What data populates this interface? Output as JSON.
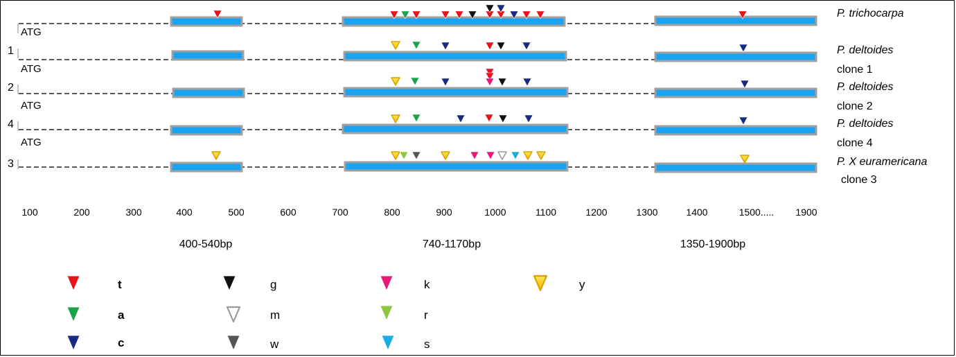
{
  "species": [
    {
      "name": "P. trichocarpa",
      "clone": ""
    },
    {
      "name": "P. deltoides",
      "clone": "clone 1"
    },
    {
      "name": "P. deltoides",
      "clone": "clone 2"
    },
    {
      "name": "P. deltoides",
      "clone": "clone 4"
    },
    {
      "name": "P. X euramericana",
      "clone": "clone 3"
    }
  ],
  "row_numbers": [
    "",
    "1",
    "2",
    "4",
    "3"
  ],
  "start_codon_label": "ATG",
  "axis_ticks": [
    "100",
    "200",
    "300",
    "400",
    "500",
    "600",
    "700",
    "800",
    "900",
    "1000",
    "1100",
    "1200",
    "1300",
    "1400",
    "1500.....",
    "1900"
  ],
  "segments": [
    "400-540bp",
    "740-1170bp",
    "1350-1900bp"
  ],
  "colors": {
    "exon_fill": "#1AA3F0",
    "exon_border": "#A0A0A0",
    "t": "#E8141C",
    "a": "#1BA34A",
    "c": "#1A2A82",
    "g": "#111111",
    "m": "#FFFFFF",
    "w": "#555555",
    "k": "#E8197A",
    "r": "#8DC63F",
    "s": "#1AACE0",
    "y": "#FFD700"
  },
  "legend": [
    {
      "symbol": "t",
      "color_key": "t",
      "bold": true
    },
    {
      "symbol": "a",
      "color_key": "a",
      "bold": true
    },
    {
      "symbol": "c",
      "color_key": "c",
      "bold": true
    },
    {
      "symbol": "g",
      "color_key": "g",
      "bold": false
    },
    {
      "symbol": "m",
      "color_key": "m",
      "bold": false
    },
    {
      "symbol": "w",
      "color_key": "w",
      "bold": false
    },
    {
      "symbol": "k",
      "color_key": "k",
      "bold": false
    },
    {
      "symbol": "r",
      "color_key": "r",
      "bold": false
    },
    {
      "symbol": "s",
      "color_key": "s",
      "bold": false
    },
    {
      "symbol": "y",
      "color_key": "y",
      "bold": false
    }
  ]
}
